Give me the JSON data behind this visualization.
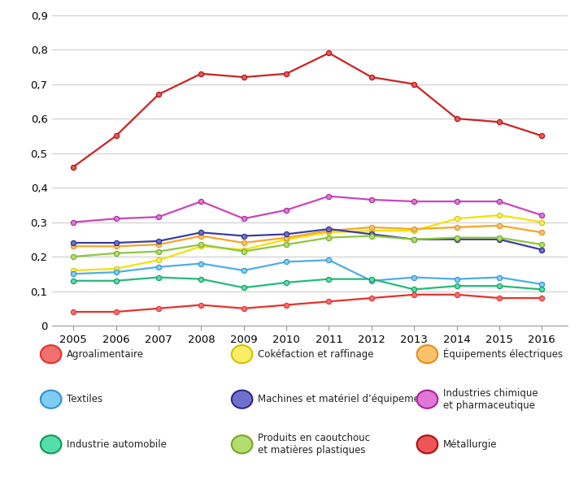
{
  "years": [
    2005,
    2006,
    2007,
    2008,
    2009,
    2010,
    2011,
    2012,
    2013,
    2014,
    2015,
    2016
  ],
  "series": [
    {
      "name": "Agroalimentaire",
      "values": [
        0.04,
        0.04,
        0.05,
        0.06,
        0.05,
        0.06,
        0.07,
        0.08,
        0.09,
        0.09,
        0.08,
        0.08
      ],
      "line_color": "#E8312A",
      "marker_face": "#F07070",
      "marker_edge": "#E8312A"
    },
    {
      "name": "Cokéfaction et raffinage",
      "values": [
        0.16,
        0.165,
        0.19,
        0.23,
        0.22,
        0.25,
        0.27,
        0.275,
        0.275,
        0.31,
        0.32,
        0.3
      ],
      "line_color": "#F5E000",
      "marker_face": "#F9EE66",
      "marker_edge": "#D4C200"
    },
    {
      "name": "Équipements électriques",
      "values": [
        0.23,
        0.23,
        0.235,
        0.26,
        0.24,
        0.255,
        0.275,
        0.285,
        0.28,
        0.285,
        0.29,
        0.27
      ],
      "line_color": "#F5A623",
      "marker_face": "#F9C26A",
      "marker_edge": "#E09020"
    },
    {
      "name": "Textiles",
      "values": [
        0.15,
        0.155,
        0.17,
        0.18,
        0.16,
        0.185,
        0.19,
        0.13,
        0.14,
        0.135,
        0.14,
        0.12
      ],
      "line_color": "#4BAEE8",
      "marker_face": "#7ECDF5",
      "marker_edge": "#3090CC"
    },
    {
      "name": "Machines et matériel d’équipement",
      "values": [
        0.24,
        0.24,
        0.245,
        0.27,
        0.26,
        0.265,
        0.28,
        0.265,
        0.25,
        0.25,
        0.25,
        0.22
      ],
      "line_color": "#3C3DA0",
      "marker_face": "#7070CC",
      "marker_edge": "#2A2A88"
    },
    {
      "name": "Industries chimique\net pharmaceutique",
      "values": [
        0.3,
        0.31,
        0.315,
        0.36,
        0.31,
        0.335,
        0.375,
        0.365,
        0.36,
        0.36,
        0.36,
        0.32
      ],
      "line_color": "#CC44BB",
      "marker_face": "#E077D5",
      "marker_edge": "#AA2299"
    },
    {
      "name": "Industrie automobile",
      "values": [
        0.13,
        0.13,
        0.14,
        0.135,
        0.11,
        0.125,
        0.135,
        0.135,
        0.105,
        0.115,
        0.115,
        0.105
      ],
      "line_color": "#22BB77",
      "marker_face": "#55DDAA",
      "marker_edge": "#119955"
    },
    {
      "name": "Produits en caoutchouc\net matières plastiques",
      "values": [
        0.2,
        0.21,
        0.215,
        0.235,
        0.215,
        0.235,
        0.255,
        0.26,
        0.25,
        0.255,
        0.255,
        0.235
      ],
      "line_color": "#8DC63F",
      "marker_face": "#B4DD70",
      "marker_edge": "#70AA28"
    },
    {
      "name": "Métallurgie",
      "values": [
        0.46,
        0.55,
        0.67,
        0.73,
        0.72,
        0.73,
        0.79,
        0.72,
        0.7,
        0.6,
        0.59,
        0.55
      ],
      "line_color": "#CC2222",
      "marker_face": "#EE5555",
      "marker_edge": "#AA1111"
    }
  ],
  "ylim": [
    0,
    0.9
  ],
  "yticks": [
    0,
    0.1,
    0.2,
    0.3,
    0.4,
    0.5,
    0.6,
    0.7,
    0.8,
    0.9
  ],
  "ytick_labels": [
    "0",
    "0,1",
    "0,2",
    "0,3",
    "0,4",
    "0,5",
    "0,6",
    "0,7",
    "0,8",
    "0,9"
  ],
  "background_color": "#FFFFFF",
  "grid_color": "#C8C8C8",
  "legend_columns": [
    [
      "Agroalimentaire",
      "Textiles",
      "Industrie automobile"
    ],
    [
      "Cokéfaction et raffinage",
      "Machines et matériel d’équipement",
      "Produits en caoutchouc\net matières plastiques"
    ],
    [
      "Équipements électriques",
      "Industries chimique\net pharmaceutique",
      "Métallurgie"
    ]
  ]
}
